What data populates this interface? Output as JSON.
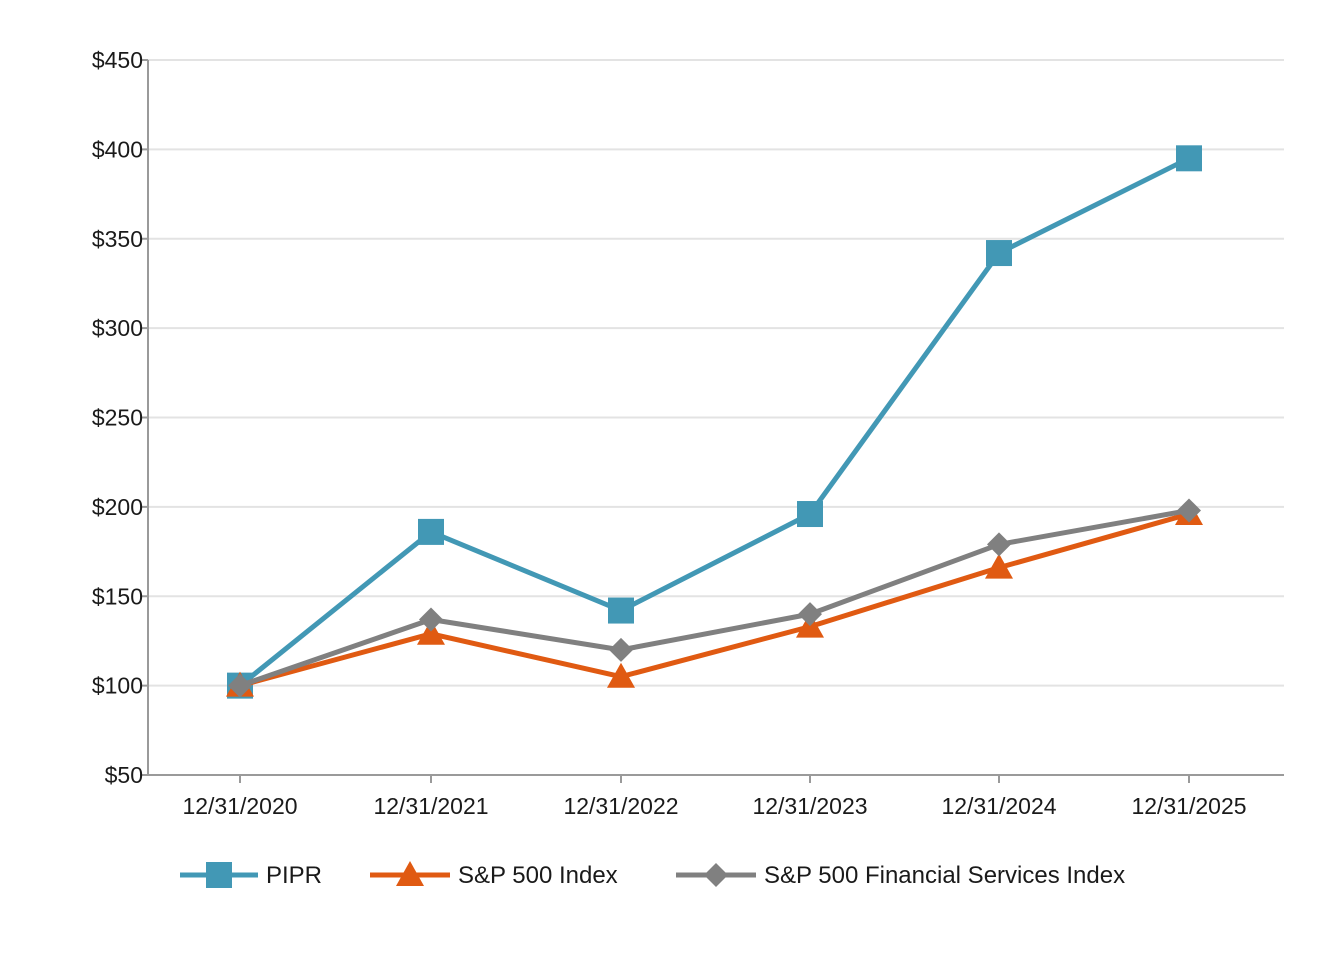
{
  "chart_data": {
    "type": "line",
    "title": "",
    "xlabel": "",
    "ylabel": "",
    "categories": [
      "12/31/2020",
      "12/31/2021",
      "12/31/2022",
      "12/31/2023",
      "12/31/2024",
      "12/31/2025"
    ],
    "ylim": [
      50,
      450
    ],
    "yticks": [
      50,
      100,
      150,
      200,
      250,
      300,
      350,
      400,
      450
    ],
    "ytick_labels": [
      "$50",
      "$100",
      "$150",
      "$200",
      "$250",
      "$300",
      "$350",
      "$400",
      "$450"
    ],
    "grid": true,
    "legend_position": "bottom",
    "series": [
      {
        "name": "PIPR",
        "color": "#4298b5",
        "marker": "square",
        "values": [
          100,
          186,
          142,
          196,
          342,
          395
        ]
      },
      {
        "name": "S&P 500 Index",
        "color": "#e05a12",
        "marker": "triangle",
        "values": [
          100,
          129,
          105,
          133,
          166,
          196
        ]
      },
      {
        "name": "S&P 500 Financial Services Index",
        "color": "#808080",
        "marker": "diamond",
        "values": [
          100,
          137,
          120,
          140,
          179,
          198
        ]
      }
    ]
  }
}
